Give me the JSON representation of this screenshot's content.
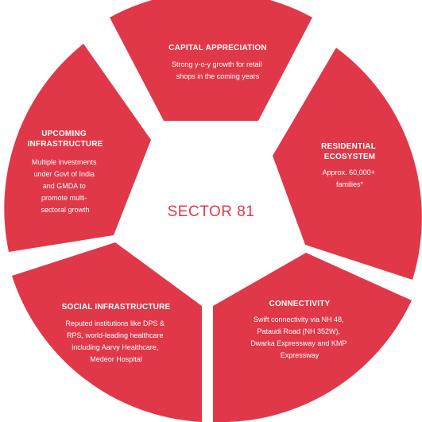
{
  "colors": {
    "segment": "#e03848",
    "center_fill": "#ffffff",
    "center_text": "#e03848",
    "segment_text": "#ffffff"
  },
  "center": {
    "label": "SECTOR 81"
  },
  "segments": {
    "capital": {
      "title": "CAPITAL APPRECIATION",
      "body": [
        "Strong y-o-y growth for retail",
        "shops in the coming years"
      ]
    },
    "residential": {
      "title": [
        "RESIDENTIAL",
        "ECOSYSTEM"
      ],
      "body": [
        "Approx. 60,000+",
        "families*"
      ]
    },
    "connectivity": {
      "title": "CONNECTIVITY",
      "body": [
        "Swift connectivity via NH 48,",
        "Pataudi Road (NH 352W),",
        "Dwarka Expressway and KMP",
        "Expressway"
      ]
    },
    "social": {
      "title": "SOCIAL INFRASTRUCTURE",
      "body": [
        "Reputed institutions like DPS &",
        "RPS, world-leading healthcare",
        "including Aarvy Healthcare,",
        "Medeor Hospital"
      ]
    },
    "infrastructure": {
      "title": [
        "UPCOMING",
        "INFRASTRUCTURE"
      ],
      "body": [
        "Multiple investments",
        "under Govt of India",
        "and GMDA to",
        "promote multi-",
        "sectoral growth"
      ]
    }
  }
}
